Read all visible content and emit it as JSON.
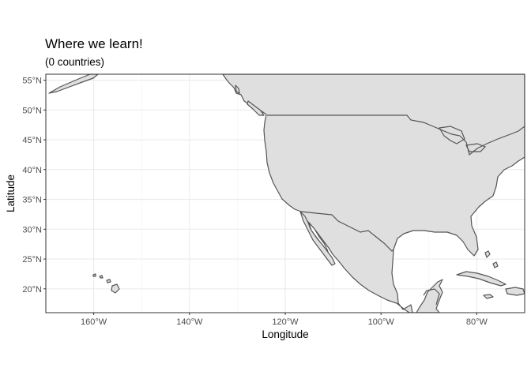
{
  "title": "Where we learn!",
  "subtitle": "(0 countries)",
  "xlabel": "Longitude",
  "ylabel": "Latitude",
  "x_ticks": [
    {
      "value": -160,
      "label": "160°W"
    },
    {
      "value": -140,
      "label": "140°W"
    },
    {
      "value": -120,
      "label": "120°W"
    },
    {
      "value": -100,
      "label": "100°W"
    },
    {
      "value": -80,
      "label": "80°W"
    }
  ],
  "y_ticks": [
    {
      "value": 20,
      "label": "20°N"
    },
    {
      "value": 25,
      "label": "25°N"
    },
    {
      "value": 30,
      "label": "30°N"
    },
    {
      "value": 35,
      "label": "35°N"
    },
    {
      "value": 40,
      "label": "40°N"
    },
    {
      "value": 45,
      "label": "45°N"
    },
    {
      "value": 50,
      "label": "50°N"
    },
    {
      "value": 55,
      "label": "55°N"
    }
  ],
  "map": {
    "lon_range": [
      -170,
      -70
    ],
    "lat_range": [
      16,
      56
    ],
    "grid": true,
    "land_color": "#dfdfdf",
    "border_color": "#555555",
    "grid_color": "#ebebeb"
  }
}
